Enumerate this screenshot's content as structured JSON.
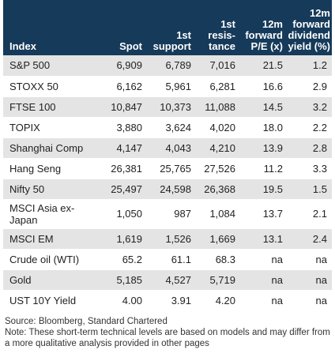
{
  "table": {
    "headers": [
      "Index",
      "Spot",
      "1st\nsupport",
      "1st\nresis-\ntance",
      "12m\nforward\nP/E (x)",
      "12m\nforward\ndividend\nyield (%)"
    ],
    "rows": [
      {
        "index": "S&P 500",
        "spot": "6,909",
        "support": "6,789",
        "resistance": "7,016",
        "pe": "21.5",
        "yield": "1.2"
      },
      {
        "index": "STOXX 50",
        "spot": "6,162",
        "support": "5,961",
        "resistance": "6,281",
        "pe": "16.6",
        "yield": "2.9"
      },
      {
        "index": "FTSE 100",
        "spot": "10,847",
        "support": "10,373",
        "resistance": "11,088",
        "pe": "14.5",
        "yield": "3.2"
      },
      {
        "index": "TOPIX",
        "spot": "3,880",
        "support": "3,624",
        "resistance": "4,020",
        "pe": "18.0",
        "yield": "2.2"
      },
      {
        "index": "Shanghai Comp",
        "spot": "4,147",
        "support": "4,043",
        "resistance": "4,210",
        "pe": "13.9",
        "yield": "2.8"
      },
      {
        "index": "Hang Seng",
        "spot": "26,381",
        "support": "25,765",
        "resistance": "27,526",
        "pe": "11.2",
        "yield": "3.3"
      },
      {
        "index": "Nifty 50",
        "spot": "25,497",
        "support": "24,598",
        "resistance": "26,368",
        "pe": "19.5",
        "yield": "1.5"
      },
      {
        "index": "MSCI Asia ex-Japan",
        "spot": "1,050",
        "support": "987",
        "resistance": "1,084",
        "pe": "13.7",
        "yield": "2.1"
      },
      {
        "index": "MSCI EM",
        "spot": "1,619",
        "support": "1,526",
        "resistance": "1,669",
        "pe": "13.1",
        "yield": "2.4"
      },
      {
        "index": "Crude oil (WTI)",
        "spot": "65.2",
        "support": "61.1",
        "resistance": "68.3",
        "pe": "na",
        "yield": "na"
      },
      {
        "index": "Gold",
        "spot": "5,185",
        "support": "4,527",
        "resistance": "5,719",
        "pe": "na",
        "yield": "na"
      },
      {
        "index": "UST 10Y Yield",
        "spot": "4.00",
        "support": "3.91",
        "resistance": "4.20",
        "pe": "na",
        "yield": "na"
      }
    ]
  },
  "source": "Source: Bloomberg, Standard Chartered",
  "note": "Note: These short-term technical levels are based on models and may differ from a more qualitative analysis provided in other pages",
  "colors": {
    "header_bg": "#163a5a",
    "stripe_bg": "#e4e4e4"
  }
}
